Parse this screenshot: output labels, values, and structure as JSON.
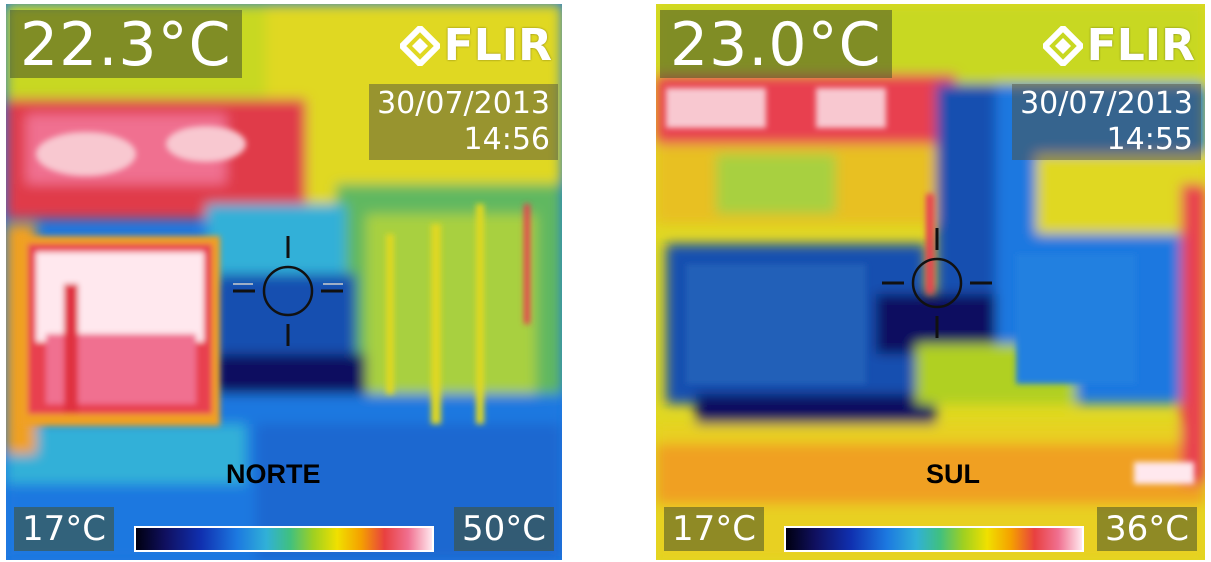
{
  "panels": [
    {
      "id": "norte",
      "spot_temperature": "22.3°C",
      "brand": "FLIR",
      "date": "30/07/2013",
      "time": "14:56",
      "label": "NORTE",
      "scale_min": "17°C",
      "scale_max": "50°C"
    },
    {
      "id": "sul",
      "spot_temperature": "23.0°C",
      "brand": "FLIR",
      "date": "30/07/2013",
      "time": "14:55",
      "label": "SUL",
      "scale_min": "17°C",
      "scale_max": "36°C"
    }
  ],
  "palette": {
    "hot": "#ffe8ee",
    "warm": "#e84040",
    "mid": "#f0e000",
    "cool": "#1c78e0",
    "cold": "#101060"
  }
}
